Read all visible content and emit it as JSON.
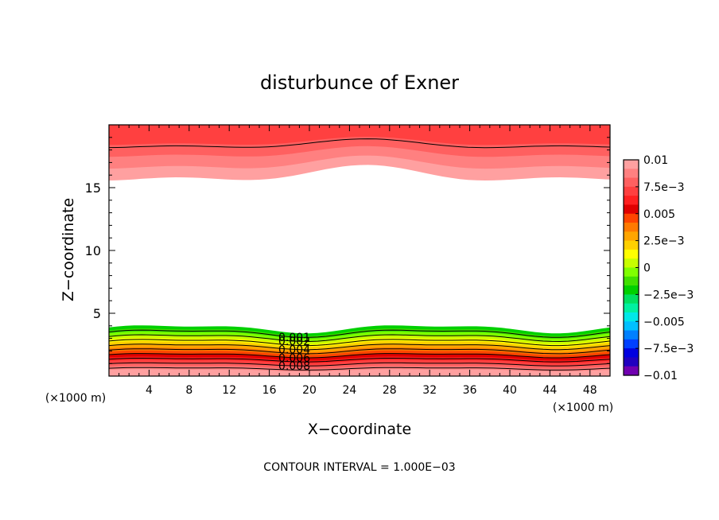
{
  "chart_data": {
    "type": "contour",
    "title": "disturbunce of Exner",
    "xlabel": "X−coordinate",
    "ylabel": "Z−coordinate",
    "x_unit_left": "(×1000 m)",
    "x_unit_right": "(×1000 m)",
    "xlim": [
      0,
      50
    ],
    "ylim": [
      0,
      20
    ],
    "x_ticks": [
      4,
      8,
      12,
      16,
      20,
      24,
      28,
      32,
      36,
      40,
      44,
      48
    ],
    "x_tick_labels": [
      "4",
      "8",
      "12",
      "16",
      "20",
      "24",
      "28",
      "32",
      "36",
      "40",
      "44",
      "48"
    ],
    "y_ticks": [
      5,
      10,
      15
    ],
    "y_tick_labels": [
      "5",
      "10",
      "15"
    ],
    "contour_interval_text": "CONTOUR INTERVAL = 1.000E−03",
    "colorbar": {
      "range": [
        -0.01,
        0.01
      ],
      "tick_values": [
        0.01,
        0.0075,
        0.005,
        0.0025,
        0,
        -0.0025,
        -0.005,
        -0.0075,
        -0.01
      ],
      "tick_labels": [
        "0.01",
        "7.5e−3",
        "0.005",
        "2.5e−3",
        "0",
        "−2.5e−3",
        "−0.005",
        "−7.5e−3",
        "−0.01"
      ],
      "colors_top_to_bottom": [
        "#ffa0a0",
        "#ff8080",
        "#ff6060",
        "#ff4040",
        "#ff2020",
        "#e00000",
        "#ff4500",
        "#ff7a00",
        "#ffa500",
        "#ffd000",
        "#ffff00",
        "#c8ff00",
        "#80ff00",
        "#40e000",
        "#00d000",
        "#00e060",
        "#00f0a0",
        "#00e8e8",
        "#00c0ff",
        "#0080ff",
        "#0040ff",
        "#0000e0",
        "#2000c0",
        "#7000b0"
      ]
    },
    "contour_labels": [
      "0.008",
      "0.006",
      "0.004",
      "0.002",
      "0.001"
    ],
    "bottom_band_levels": [
      0.001,
      0.002,
      0.003,
      0.004,
      0.005,
      0.006,
      0.007,
      0.008,
      0.009
    ],
    "top_band_levels": [
      0.007,
      0.008,
      0.009,
      0.01
    ],
    "bottom_band_fill_colors": [
      "#00d000",
      "#40e000",
      "#80ff00",
      "#c8ff00",
      "#ffff00",
      "#ffd000",
      "#ffa500",
      "#ff7a00",
      "#ff4500",
      "#e00000",
      "#ff2020",
      "#ff4040",
      "#ff6060",
      "#ff8080",
      "#ffa0a0"
    ],
    "top_band_fill_colors": [
      "#ffa0a0",
      "#ff8080",
      "#ff6060",
      "#ff4040"
    ]
  }
}
